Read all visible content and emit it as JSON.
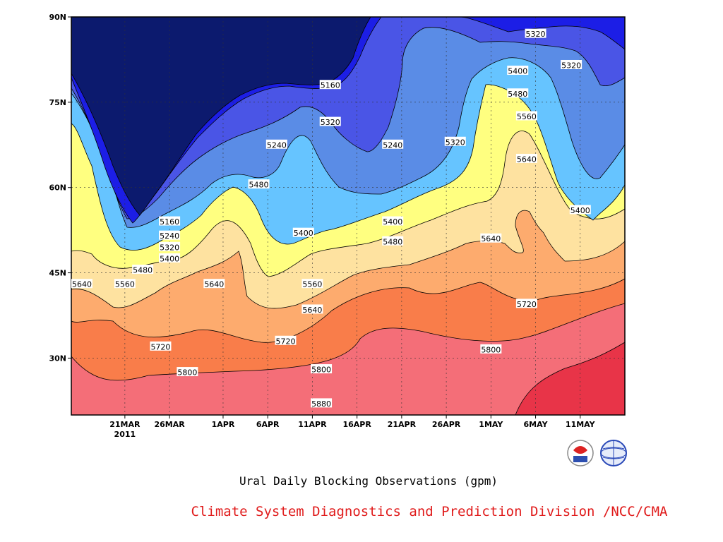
{
  "chart_data": {
    "type": "heatmap",
    "title": "Ural Daily Blocking Observations (gpm)",
    "credit": "Climate System Diagnostics and Prediction Division /NCC/CMA",
    "x_axis": {
      "ticks": [
        "21MAR",
        "26MAR",
        "1APR",
        "6APR",
        "11APR",
        "16APR",
        "21APR",
        "26APR",
        "1MAY",
        "6MAY",
        "11MAY"
      ],
      "year_label": "2011",
      "range": [
        "2011-03-15",
        "2011-05-16"
      ]
    },
    "y_axis": {
      "ticks": [
        "30N",
        "45N",
        "60N",
        "75N",
        "90N"
      ],
      "range_deg": [
        20,
        90
      ]
    },
    "contour_levels": [
      5160,
      5240,
      5320,
      5400,
      5480,
      5560,
      5640,
      5720,
      5800,
      5880
    ],
    "colors": {
      "lt5160": "#0c1a6e",
      "5160": "#1c1ee6",
      "5240": "#4a55e6",
      "5320": "#5a8ce6",
      "5400": "#66c4ff",
      "5480": "#ffff80",
      "5560": "#fee2a0",
      "5640": "#fdab6e",
      "5720": "#f97d4a",
      "5800": "#f46e78",
      "5880": "#e83448"
    },
    "labels": [
      {
        "text": "5160",
        "date": "2011-03-26",
        "lat": 54
      },
      {
        "text": "5240",
        "date": "2011-03-26",
        "lat": 51.5
      },
      {
        "text": "5320",
        "date": "2011-03-26",
        "lat": 49.5
      },
      {
        "text": "5400",
        "date": "2011-03-26",
        "lat": 47.5
      },
      {
        "text": "5480",
        "date": "2011-03-23",
        "lat": 45.5
      },
      {
        "text": "5560",
        "date": "2011-03-21",
        "lat": 43
      },
      {
        "text": "5640",
        "date": "2011-03-16",
        "lat": 43
      },
      {
        "text": "5640",
        "date": "2011-03-31",
        "lat": 43
      },
      {
        "text": "5720",
        "date": "2011-03-25",
        "lat": 32
      },
      {
        "text": "5800",
        "date": "2011-03-28",
        "lat": 27.5
      },
      {
        "text": "5240",
        "date": "2011-04-07",
        "lat": 67.5
      },
      {
        "text": "5480",
        "date": "2011-04-05",
        "lat": 60.5
      },
      {
        "text": "5400",
        "date": "2011-04-10",
        "lat": 52
      },
      {
        "text": "5560",
        "date": "2011-04-11",
        "lat": 43
      },
      {
        "text": "5640",
        "date": "2011-04-11",
        "lat": 38.5
      },
      {
        "text": "5720",
        "date": "2011-04-08",
        "lat": 33
      },
      {
        "text": "5800",
        "date": "2011-04-12",
        "lat": 28
      },
      {
        "text": "5880",
        "date": "2011-04-12",
        "lat": 22
      },
      {
        "text": "5160",
        "date": "2011-04-13",
        "lat": 78
      },
      {
        "text": "5320",
        "date": "2011-04-13",
        "lat": 71.5
      },
      {
        "text": "5240",
        "date": "2011-04-20",
        "lat": 67.5
      },
      {
        "text": "5400",
        "date": "2011-04-20",
        "lat": 54
      },
      {
        "text": "5480",
        "date": "2011-04-20",
        "lat": 50.5
      },
      {
        "text": "5320",
        "date": "2011-04-27",
        "lat": 68
      },
      {
        "text": "5640",
        "date": "2011-05-01",
        "lat": 51
      },
      {
        "text": "5800",
        "date": "2011-05-01",
        "lat": 31.5
      },
      {
        "text": "5400",
        "date": "2011-05-04",
        "lat": 80.5
      },
      {
        "text": "5480",
        "date": "2011-05-04",
        "lat": 76.5
      },
      {
        "text": "5560",
        "date": "2011-05-05",
        "lat": 72.5
      },
      {
        "text": "5640",
        "date": "2011-05-05",
        "lat": 65
      },
      {
        "text": "5720",
        "date": "2011-05-05",
        "lat": 39.5
      },
      {
        "text": "5320",
        "date": "2011-05-06",
        "lat": 87
      },
      {
        "text": "5320",
        "date": "2011-05-10",
        "lat": 81.5
      },
      {
        "text": "5400",
        "date": "2011-05-11",
        "lat": 56
      }
    ]
  }
}
